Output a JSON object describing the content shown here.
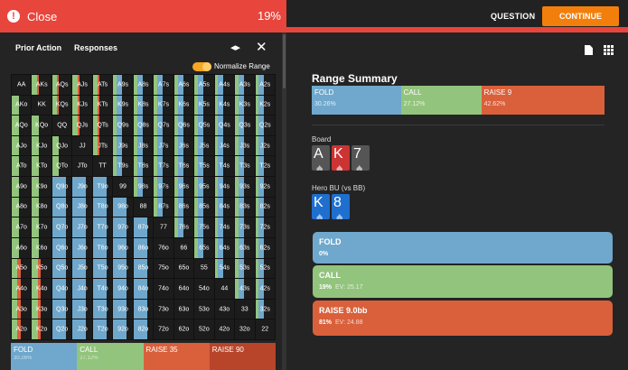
{
  "topbar": {
    "close_label": "Close",
    "percent": "19%",
    "question_label": "QUESTION",
    "continue_label": "CONTINUE"
  },
  "left_panel": {
    "tab_prior_action": "Prior Action",
    "tab_responses": "Responses",
    "normalize_label": "Normalize Range"
  },
  "grid": {
    "rows": [
      [
        "AA",
        "AKs",
        "AQs",
        "AJs",
        "ATs",
        "A9s",
        "A8s",
        "A7s",
        "A6s",
        "A5s",
        "A4s",
        "A3s",
        "A2s"
      ],
      [
        "AKo",
        "KK",
        "KQs",
        "KJs",
        "KTs",
        "K9s",
        "K8s",
        "K7s",
        "K6s",
        "K5s",
        "K4s",
        "K3s",
        "K2s"
      ],
      [
        "AQo",
        "KQo",
        "QQ",
        "QJs",
        "QTs",
        "Q9s",
        "Q8s",
        "Q7s",
        "Q6s",
        "Q5s",
        "Q4s",
        "Q3s",
        "Q2s"
      ],
      [
        "AJo",
        "KJo",
        "QJo",
        "JJ",
        "JTs",
        "J9s",
        "J8s",
        "J7s",
        "J6s",
        "J5s",
        "J4s",
        "J3s",
        "J2s"
      ],
      [
        "ATo",
        "KTo",
        "QTo",
        "JTo",
        "TT",
        "T9s",
        "T8s",
        "T7s",
        "T6s",
        "T5s",
        "T4s",
        "T3s",
        "T2s"
      ],
      [
        "A9o",
        "K9o",
        "Q9o",
        "J9o",
        "T9o",
        "99",
        "98s",
        "97s",
        "96s",
        "95s",
        "94s",
        "93s",
        "92s"
      ],
      [
        "A8o",
        "K8o",
        "Q8o",
        "J8o",
        "T8o",
        "98o",
        "88",
        "87s",
        "86s",
        "85s",
        "84s",
        "83s",
        "82s"
      ],
      [
        "A7o",
        "K7o",
        "Q7o",
        "J7o",
        "T7o",
        "97o",
        "87o",
        "77",
        "76s",
        "75s",
        "74s",
        "73s",
        "72s"
      ],
      [
        "A6o",
        "K6o",
        "Q6o",
        "J6o",
        "T6o",
        "96o",
        "86o",
        "76o",
        "66",
        "65s",
        "64s",
        "63s",
        "62s"
      ],
      [
        "A5o",
        "K5o",
        "Q5o",
        "J5o",
        "T5o",
        "95o",
        "85o",
        "75o",
        "65o",
        "55",
        "54s",
        "53s",
        "52s"
      ],
      [
        "A4o",
        "K4o",
        "Q4o",
        "J4o",
        "T4o",
        "94o",
        "84o",
        "74o",
        "64o",
        "54o",
        "44",
        "43s",
        "42s"
      ],
      [
        "A3o",
        "K3o",
        "Q3o",
        "J3o",
        "T3o",
        "93o",
        "83o",
        "73o",
        "63o",
        "53o",
        "43o",
        "33",
        "32s"
      ],
      [
        "A2o",
        "K2o",
        "Q2o",
        "J2o",
        "T2o",
        "92o",
        "82o",
        "72o",
        "62o",
        "52o",
        "42o",
        "32o",
        "22"
      ]
    ]
  },
  "legend": [
    {
      "label": "FOLD",
      "pct": "30.26%",
      "color": "#6fa8cc"
    },
    {
      "label": "CALL",
      "pct": "27.12%",
      "color": "#93c47d"
    },
    {
      "label": "RAISE 35",
      "pct": "",
      "color": "#d9603b"
    },
    {
      "label": "RAISE 90",
      "pct": "",
      "color": "#b8452a"
    }
  ],
  "range_summary": {
    "title": "Range Summary",
    "segments": [
      {
        "label": "FOLD",
        "value": "30.26%",
        "color": "#6fa8cc"
      },
      {
        "label": "CALL",
        "value": "27.12%",
        "color": "#93c47d"
      },
      {
        "label": "RAISE 9",
        "value": "42.62%",
        "color": "#d9603b"
      }
    ]
  },
  "board": {
    "label": "Board",
    "cards": [
      {
        "rank": "A",
        "color": "#555555"
      },
      {
        "rank": "K",
        "color": "#cc3333"
      },
      {
        "rank": "7",
        "color": "#555555"
      }
    ]
  },
  "hero": {
    "label": "Hero BU (vs BB)",
    "cards": [
      {
        "rank": "K",
        "color": "#1f6fcf"
      },
      {
        "rank": "8",
        "color": "#1f6fcf"
      }
    ]
  },
  "actions": [
    {
      "label": "FOLD",
      "freq": "0%",
      "ev": "",
      "color": "#6fa8cc"
    },
    {
      "label": "CALL",
      "freq": "19%",
      "ev": "EV: 25.17",
      "color": "#93c47d"
    },
    {
      "label": "RAISE 9.0bb",
      "freq": "81%",
      "ev": "EV: 24.88",
      "color": "#d9603b"
    }
  ]
}
